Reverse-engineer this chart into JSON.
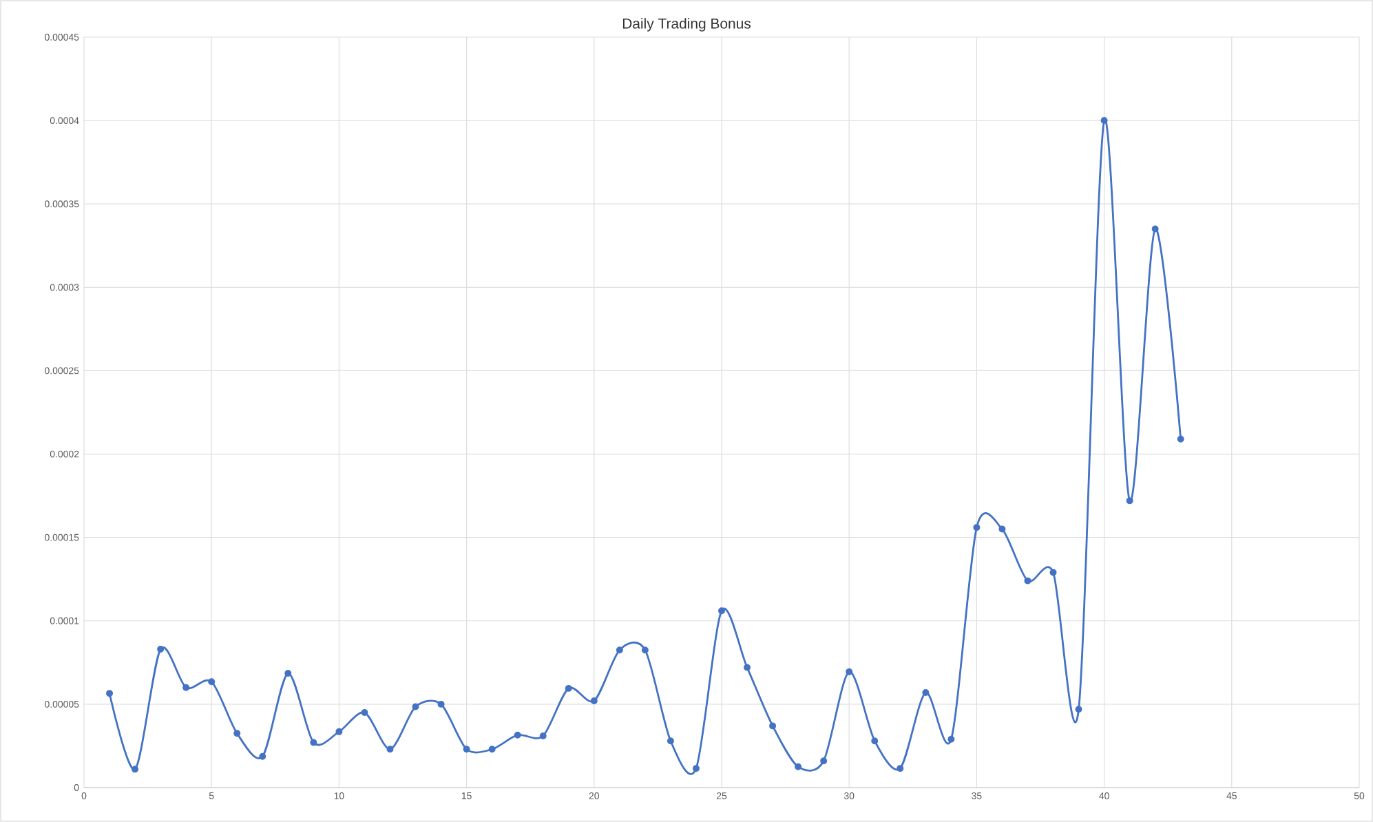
{
  "chart_data": {
    "type": "line",
    "title": "Daily Trading Bonus",
    "x": [
      1,
      2,
      3,
      4,
      5,
      6,
      7,
      8,
      9,
      10,
      11,
      12,
      13,
      14,
      15,
      16,
      17,
      18,
      19,
      20,
      21,
      22,
      23,
      24,
      25,
      26,
      27,
      28,
      29,
      30,
      31,
      32,
      33,
      34,
      35,
      36,
      37,
      38,
      39,
      40,
      41,
      42,
      43
    ],
    "series": [
      {
        "color": "#4472c4",
        "values": [
          5.65e-05,
          1.1e-05,
          8.3e-05,
          6e-05,
          6.35e-05,
          3.25e-05,
          1.87e-05,
          6.85e-05,
          2.7e-05,
          3.35e-05,
          4.5e-05,
          2.3e-05,
          4.85e-05,
          5e-05,
          2.3e-05,
          2.3e-05,
          3.15e-05,
          3.1e-05,
          5.95e-05,
          5.2e-05,
          8.25e-05,
          8.25e-05,
          2.8e-05,
          1.15e-05,
          0.000106,
          7.2e-05,
          3.7e-05,
          1.25e-05,
          1.6e-05,
          6.95e-05,
          2.8e-05,
          1.15e-05,
          5.7e-05,
          2.9e-05,
          0.000156,
          0.000155,
          0.000124,
          0.000129,
          4.7e-05,
          0.0004,
          0.000172,
          0.000335,
          0.000209
        ]
      }
    ],
    "xlim": [
      0,
      50
    ],
    "xticks": [
      0,
      5,
      10,
      15,
      20,
      25,
      30,
      35,
      40,
      45,
      50
    ],
    "ylim": [
      0,
      0.00045
    ],
    "yticks": [
      {
        "value": 0,
        "label": "0"
      },
      {
        "value": 5e-05,
        "label": "0.00005"
      },
      {
        "value": 0.0001,
        "label": "0.0001"
      },
      {
        "value": 0.00015,
        "label": "0.00015"
      },
      {
        "value": 0.0002,
        "label": "0.0002"
      },
      {
        "value": 0.00025,
        "label": "0.00025"
      },
      {
        "value": 0.0003,
        "label": "0.0003"
      },
      {
        "value": 0.00035,
        "label": "0.00035"
      },
      {
        "value": 0.0004,
        "label": "0.0004"
      },
      {
        "value": 0.00045,
        "label": "0.00045"
      }
    ],
    "grid": true,
    "marker": "circle",
    "line_style": "solid",
    "legend": false
  }
}
